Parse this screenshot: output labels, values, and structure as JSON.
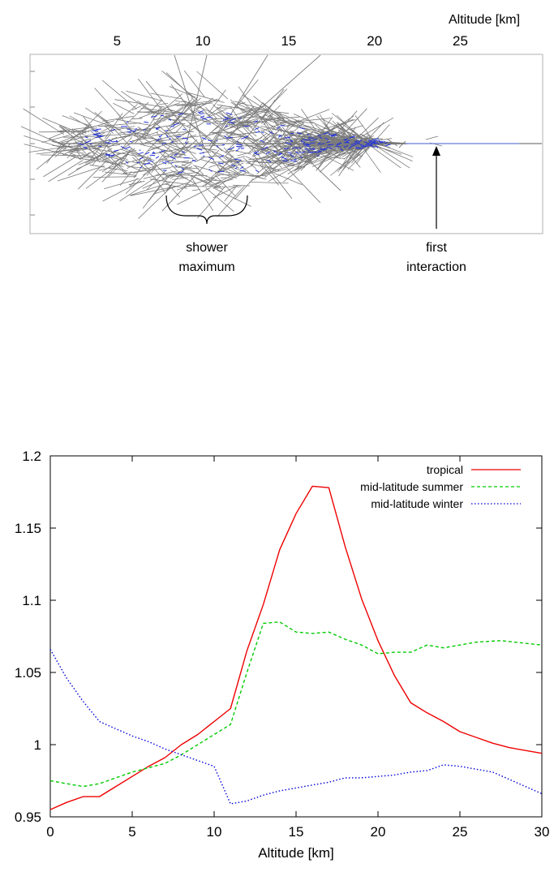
{
  "chart_data": [
    {
      "type": "other",
      "subject": "air shower particle tracks",
      "xlabel": "Altitude [km]",
      "x_ticks": [
        5,
        10,
        15,
        20,
        25
      ],
      "annotations": [
        {
          "lines": [
            "shower",
            "maximum"
          ]
        },
        {
          "lines": [
            "first",
            "interaction"
          ]
        }
      ],
      "colors": {
        "tracks": "#7a7a7a",
        "electromagnetic": "#2233dd"
      }
    },
    {
      "type": "line",
      "xlabel": "Altitude [km]",
      "ylabel": "",
      "xlim": [
        0,
        30
      ],
      "ylim": [
        0.95,
        1.2
      ],
      "x_ticks": [
        0,
        5,
        10,
        15,
        20,
        25,
        30
      ],
      "y_ticks": [
        0.95,
        1,
        1.05,
        1.1,
        1.15,
        1.2
      ],
      "y_tick_labels": [
        "0.95",
        "1",
        "1.05",
        "1.1",
        "1.15",
        "1.2"
      ],
      "legend_position": "top-right",
      "grid": false,
      "series": [
        {
          "name": "tropical",
          "color": "#ee0000",
          "dash": "solid",
          "x": [
            0,
            1,
            2,
            3,
            4,
            5,
            6,
            7,
            8,
            9,
            10,
            11,
            12,
            13,
            14,
            15,
            16,
            17,
            18,
            19,
            20,
            21,
            22,
            23,
            24,
            25,
            26,
            27,
            28,
            30
          ],
          "y": [
            0.955,
            0.96,
            0.964,
            0.964,
            0.971,
            0.978,
            0.985,
            0.991,
            1.0,
            1.007,
            1.016,
            1.025,
            1.065,
            1.097,
            1.135,
            1.16,
            1.179,
            1.178,
            1.137,
            1.101,
            1.072,
            1.048,
            1.029,
            1.022,
            1.016,
            1.009,
            1.005,
            1.001,
            0.998,
            0.994
          ]
        },
        {
          "name": "mid-latitude summer",
          "color": "#00cc00",
          "dash": "dashed",
          "x": [
            0,
            1,
            2,
            3,
            4,
            5,
            6,
            7,
            8,
            9,
            10,
            11,
            12,
            13,
            14,
            15,
            16,
            17,
            18,
            19,
            20,
            21,
            22,
            23,
            24,
            25,
            26,
            27.5,
            30
          ],
          "y": [
            0.975,
            0.973,
            0.971,
            0.973,
            0.977,
            0.981,
            0.984,
            0.987,
            0.993,
            1.0,
            1.007,
            1.014,
            1.05,
            1.084,
            1.085,
            1.078,
            1.077,
            1.078,
            1.073,
            1.069,
            1.063,
            1.064,
            1.064,
            1.069,
            1.067,
            1.069,
            1.071,
            1.072,
            1.069
          ]
        },
        {
          "name": "mid-latitude winter",
          "color": "#0000dd",
          "dash": "dotted",
          "x": [
            0,
            1,
            2,
            3,
            4,
            5,
            6,
            7,
            8,
            9,
            10,
            11,
            12,
            13,
            14,
            15,
            16,
            17,
            18,
            19,
            20,
            21,
            22,
            23,
            24,
            25,
            26,
            27,
            28,
            30
          ],
          "y": [
            1.066,
            1.046,
            1.03,
            1.016,
            1.011,
            1.006,
            1.002,
            0.997,
            0.993,
            0.989,
            0.985,
            0.959,
            0.961,
            0.965,
            0.968,
            0.97,
            0.972,
            0.974,
            0.977,
            0.977,
            0.978,
            0.979,
            0.981,
            0.982,
            0.986,
            0.985,
            0.983,
            0.981,
            0.976,
            0.966
          ]
        }
      ]
    }
  ]
}
